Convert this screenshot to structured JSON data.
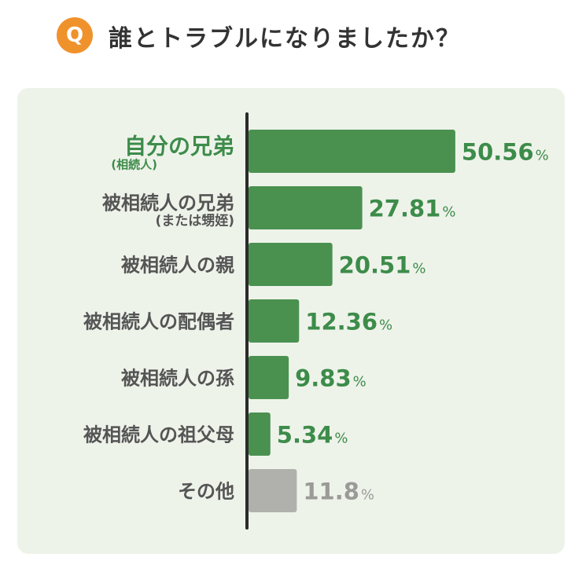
{
  "header": {
    "badge": "Q",
    "title": "誰とトラブルになりましたか？"
  },
  "colors": {
    "badge": "#f0922b",
    "bar": "#4a9150",
    "bar_other": "#b0b0ad",
    "value": "#3d8c4a",
    "value_other": "#9a9a98",
    "highlight_label": "#3d8c4a",
    "label": "#555555",
    "panel": "#eef3ea"
  },
  "chart_data": {
    "type": "bar",
    "orientation": "horizontal",
    "categories": [
      "自分の兄弟",
      "被相続人の兄弟",
      "被相続人の親",
      "被相続人の配偶者",
      "被相続人の孫",
      "被相続人の祖父母",
      "その他"
    ],
    "sublabels": [
      "(相続人)",
      "(または甥姪)",
      "",
      "",
      "",
      "",
      ""
    ],
    "values": [
      50.56,
      27.81,
      20.51,
      12.36,
      9.83,
      5.34,
      11.8
    ],
    "value_labels": [
      "50.56",
      "27.81",
      "20.51",
      "12.36",
      "9.83",
      "5.34",
      "11.8"
    ],
    "unit": "%",
    "highlight_index": 0,
    "other_index": 6,
    "title": "",
    "xlabel": "",
    "ylabel": "",
    "grid": false
  }
}
